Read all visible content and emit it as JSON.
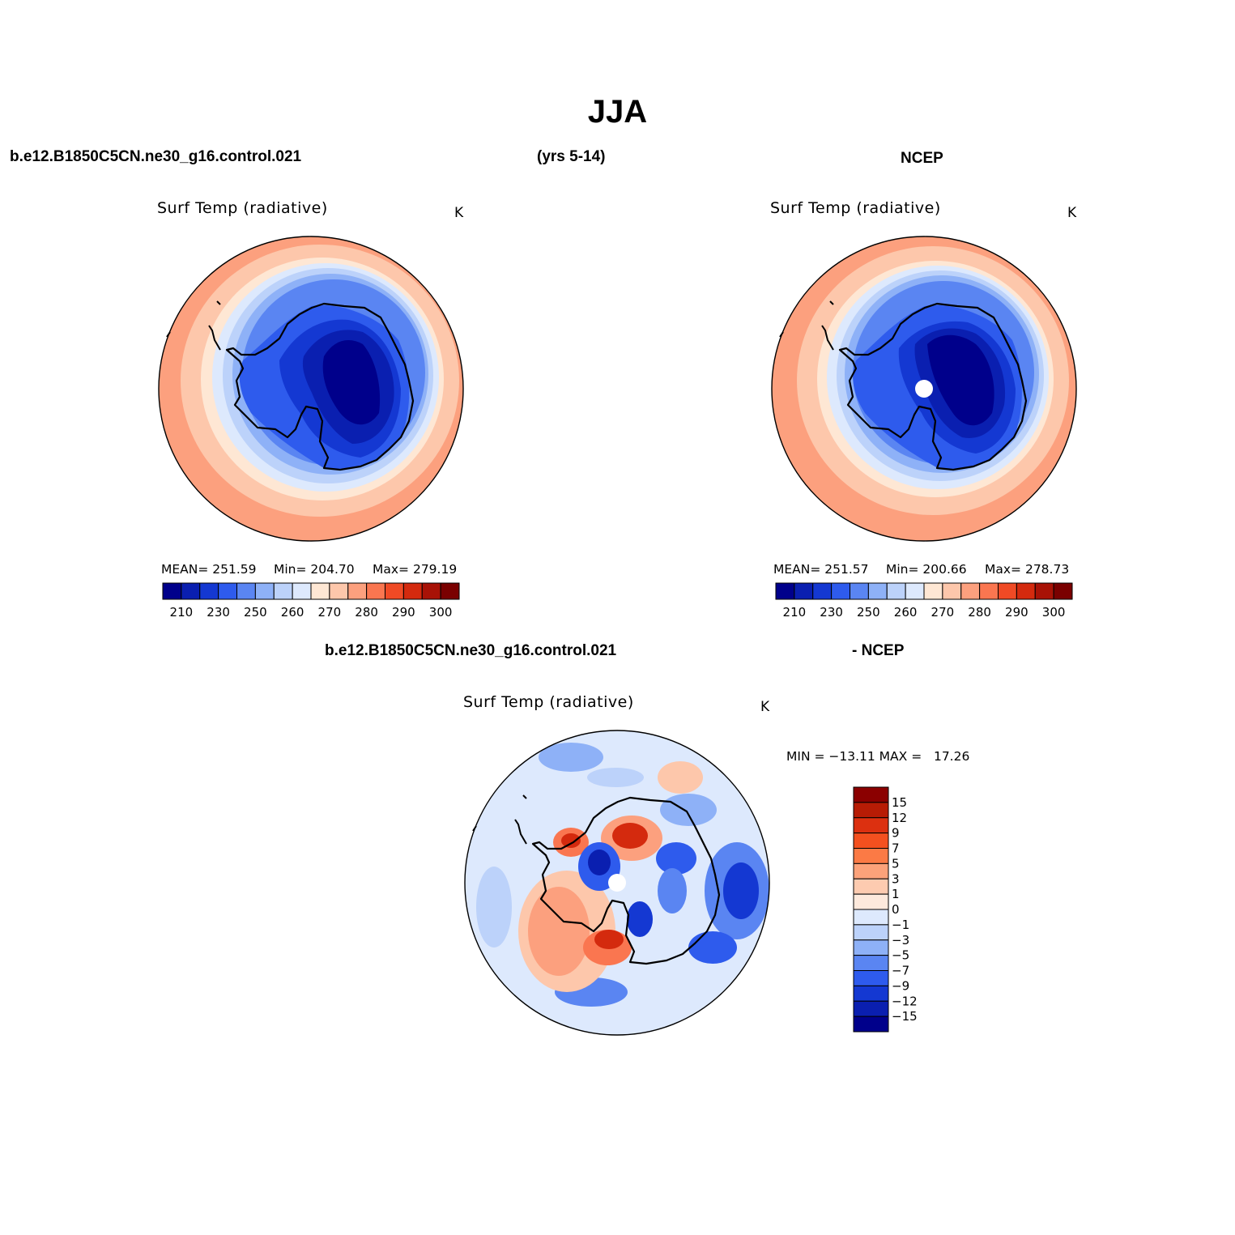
{
  "figure": {
    "title": "JJA",
    "case_label": "b.e12.B1850C5CN.ne30_g16.control.021",
    "years_label": "(yrs 5-14)",
    "obs_label": "NCEP",
    "diff_case_label": "b.e12.B1850C5CN.ne30_g16.control.021",
    "diff_obs_label": "- NCEP"
  },
  "panels": [
    {
      "id": "model",
      "variable": "Surf Temp (radiative)",
      "units": "K",
      "stats": {
        "mean": "MEAN= 251.59",
        "min": "Min= 204.70",
        "max": "Max= 279.19"
      }
    },
    {
      "id": "obs",
      "variable": "Surf Temp (radiative)",
      "units": "K",
      "stats": {
        "mean": "MEAN= 251.57",
        "min": "Min= 200.66",
        "max": "Max= 278.73"
      }
    },
    {
      "id": "diff",
      "variable": "Surf Temp (radiative)",
      "units": "K",
      "stats_text": "MIN = −13.11 MAX =   17.26"
    }
  ],
  "colorbar_main": {
    "labels": [
      "210",
      "230",
      "250",
      "260",
      "270",
      "280",
      "290",
      "300"
    ],
    "colors": [
      "#00008b",
      "#0a1fb0",
      "#1438d2",
      "#2e5bed",
      "#5a85f2",
      "#8eb1f7",
      "#bcd2fa",
      "#dde9fd",
      "#fee7d4",
      "#fdc7ab",
      "#fca07e",
      "#fa7650",
      "#f04a25",
      "#d42a0e",
      "#a81206",
      "#7a0000"
    ]
  },
  "colorbar_diff": {
    "labels": [
      "15",
      "12",
      "9",
      "7",
      "5",
      "3",
      "1",
      "0",
      "−1",
      "−3",
      "−5",
      "−7",
      "−9",
      "−12",
      "−15"
    ],
    "colors": [
      "#8b0000",
      "#b71c05",
      "#dc3010",
      "#f4501f",
      "#fb7a45",
      "#fca27a",
      "#fdcbb0",
      "#fde9dc",
      "#dde9fd",
      "#bcd2fa",
      "#8eb1f7",
      "#5a85f2",
      "#2e5bed",
      "#1438d2",
      "#0a1fb0",
      "#00008b"
    ]
  },
  "map_colors": {
    "ocean_warm_1": "#fca07e",
    "ocean_warm_2": "#fdc7ab",
    "ocean_warm_3": "#fee7d4",
    "cold_1": "#dde9fd",
    "cold_2": "#bcd2fa",
    "cold_3": "#8eb1f7",
    "cold_4": "#5a85f2",
    "cold_5": "#2e5bed",
    "cold_6": "#1438d2",
    "cold_7": "#0a1fb0",
    "cold_8": "#00008b",
    "coast": "#000000"
  }
}
